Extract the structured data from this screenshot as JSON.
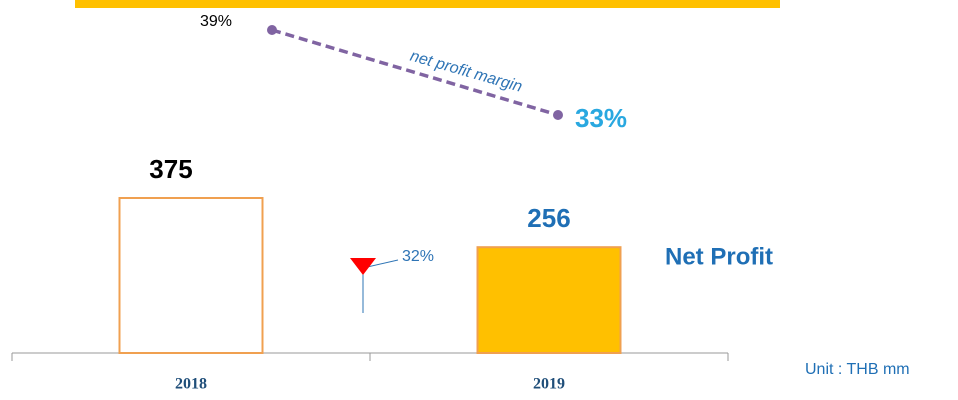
{
  "chart_data": {
    "type": "bar",
    "categories": [
      "2018",
      "2019"
    ],
    "series": [
      {
        "name": "Net Profit",
        "colors": [
          "#ffffff",
          "#ffc000"
        ],
        "stroke": "#f0a050",
        "values": [
          375,
          256
        ]
      },
      {
        "name": "net profit margin",
        "color": "#8064a2",
        "values": [
          39,
          33
        ],
        "value_labels": [
          "39%",
          "33%"
        ],
        "axis": "y2"
      }
    ],
    "change": {
      "value": 32,
      "label": "32%"
    },
    "unit": "Unit : THB mm"
  }
}
